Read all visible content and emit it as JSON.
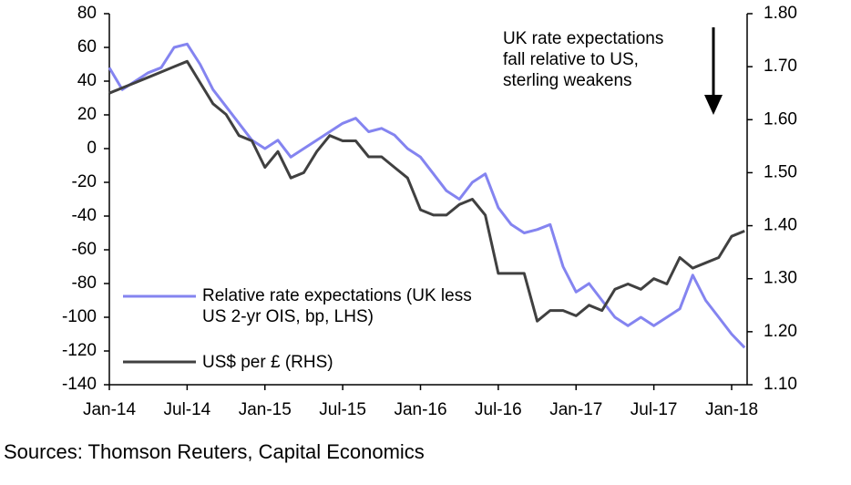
{
  "chart_data": {
    "type": "line",
    "source": "Sources: Thomson Reuters, Capital Economics",
    "annotation": [
      "UK rate expectations",
      "fall relative to US,",
      "sterling weakens"
    ],
    "legend": "lower left",
    "grid": false,
    "x": [
      "Jan-14",
      null,
      null,
      null,
      null,
      null,
      "Jul-14",
      null,
      null,
      null,
      null,
      null,
      "Jan-15",
      null,
      null,
      null,
      null,
      null,
      "Jul-15",
      null,
      null,
      null,
      null,
      null,
      "Jan-16",
      null,
      null,
      null,
      null,
      null,
      "Jul-16",
      null,
      null,
      null,
      null,
      null,
      "Jan-17",
      null,
      null,
      null,
      null,
      null,
      "Jul-17",
      null,
      null,
      null,
      null,
      null,
      "Jan-18",
      null
    ],
    "ylim": [
      -140,
      80
    ],
    "yticks": [
      -140,
      -120,
      -100,
      -80,
      -60,
      -40,
      -20,
      0,
      20,
      40,
      60,
      80
    ],
    "y2lim": [
      1.1,
      1.8
    ],
    "y2ticks": [
      {
        "value": 1.1,
        "label": "1.10"
      },
      {
        "value": 1.2,
        "label": "1.20"
      },
      {
        "value": 1.3,
        "label": "1.30"
      },
      {
        "value": 1.4,
        "label": "1.40"
      },
      {
        "value": 1.5,
        "label": "1.50"
      },
      {
        "value": 1.6,
        "label": "1.60"
      },
      {
        "value": 1.7,
        "label": "1.70"
      },
      {
        "value": 1.8,
        "label": "1.80"
      }
    ],
    "series": [
      {
        "name": "Relative rate expectations (UK less US 2-yr OIS, bp, LHS)",
        "color": "#8484f0",
        "axis": "y",
        "values": [
          48,
          35,
          40,
          45,
          48,
          60,
          62,
          50,
          35,
          25,
          15,
          5,
          0,
          5,
          -5,
          0,
          5,
          10,
          15,
          18,
          10,
          12,
          8,
          0,
          -5,
          -15,
          -25,
          -30,
          -20,
          -15,
          -35,
          -45,
          -50,
          -48,
          -45,
          -70,
          -85,
          -80,
          -90,
          -100,
          -105,
          -100,
          -105,
          -100,
          -95,
          -75,
          -90,
          -100,
          -110,
          -118
        ]
      },
      {
        "name": "US$ per £ (RHS)",
        "color": "#404040",
        "axis": "y2",
        "values": [
          1.65,
          1.66,
          1.67,
          1.68,
          1.69,
          1.7,
          1.71,
          1.67,
          1.63,
          1.61,
          1.57,
          1.56,
          1.51,
          1.54,
          1.49,
          1.5,
          1.54,
          1.57,
          1.56,
          1.56,
          1.53,
          1.53,
          1.51,
          1.49,
          1.43,
          1.42,
          1.42,
          1.44,
          1.45,
          1.42,
          1.31,
          1.31,
          1.31,
          1.22,
          1.24,
          1.24,
          1.23,
          1.25,
          1.24,
          1.28,
          1.29,
          1.28,
          1.3,
          1.29,
          1.34,
          1.32,
          1.33,
          1.34,
          1.38,
          1.39
        ]
      }
    ]
  }
}
